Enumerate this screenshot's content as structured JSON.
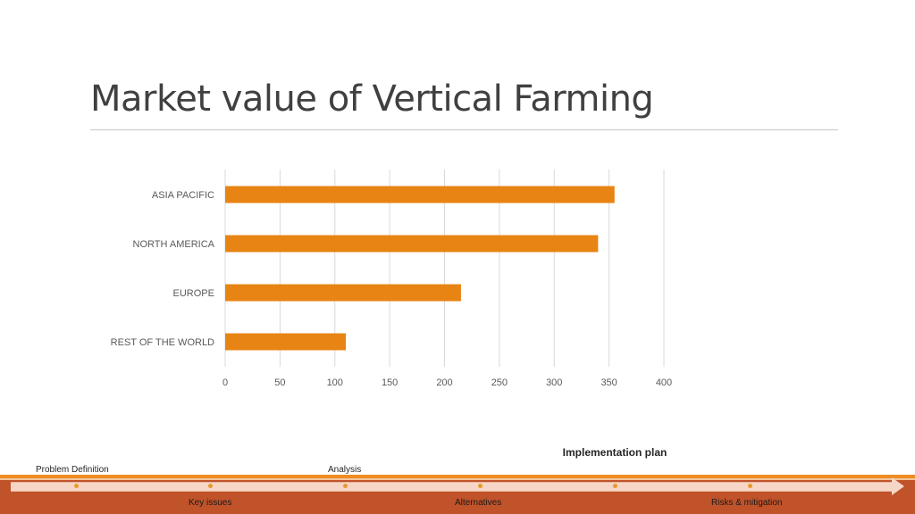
{
  "slide": {
    "title": "Market value of Vertical Farming"
  },
  "chart_data": {
    "type": "bar",
    "orientation": "horizontal",
    "categories": [
      "ASIA PACIFIC",
      "NORTH AMERICA",
      "EUROPE",
      "REST OF THE WORLD"
    ],
    "values": [
      355,
      340,
      215,
      110
    ],
    "xlim": [
      0,
      400
    ],
    "x_ticks": [
      0,
      50,
      100,
      150,
      200,
      250,
      300,
      350,
      400
    ],
    "title": "",
    "xlabel": "",
    "ylabel": "",
    "grid": "vertical",
    "legend": "none",
    "bar_color": "#e88413"
  },
  "timeline": {
    "top_labels": [
      "Problem Definition",
      "Analysis"
    ],
    "active_label": "Implementation plan",
    "bottom_labels": [
      "Key issues",
      "Alternatives",
      "Risks & mitigation"
    ],
    "colors": {
      "accent": "#ef8d22",
      "band": "#c0532a",
      "shaft": "#f6d7c7"
    }
  }
}
